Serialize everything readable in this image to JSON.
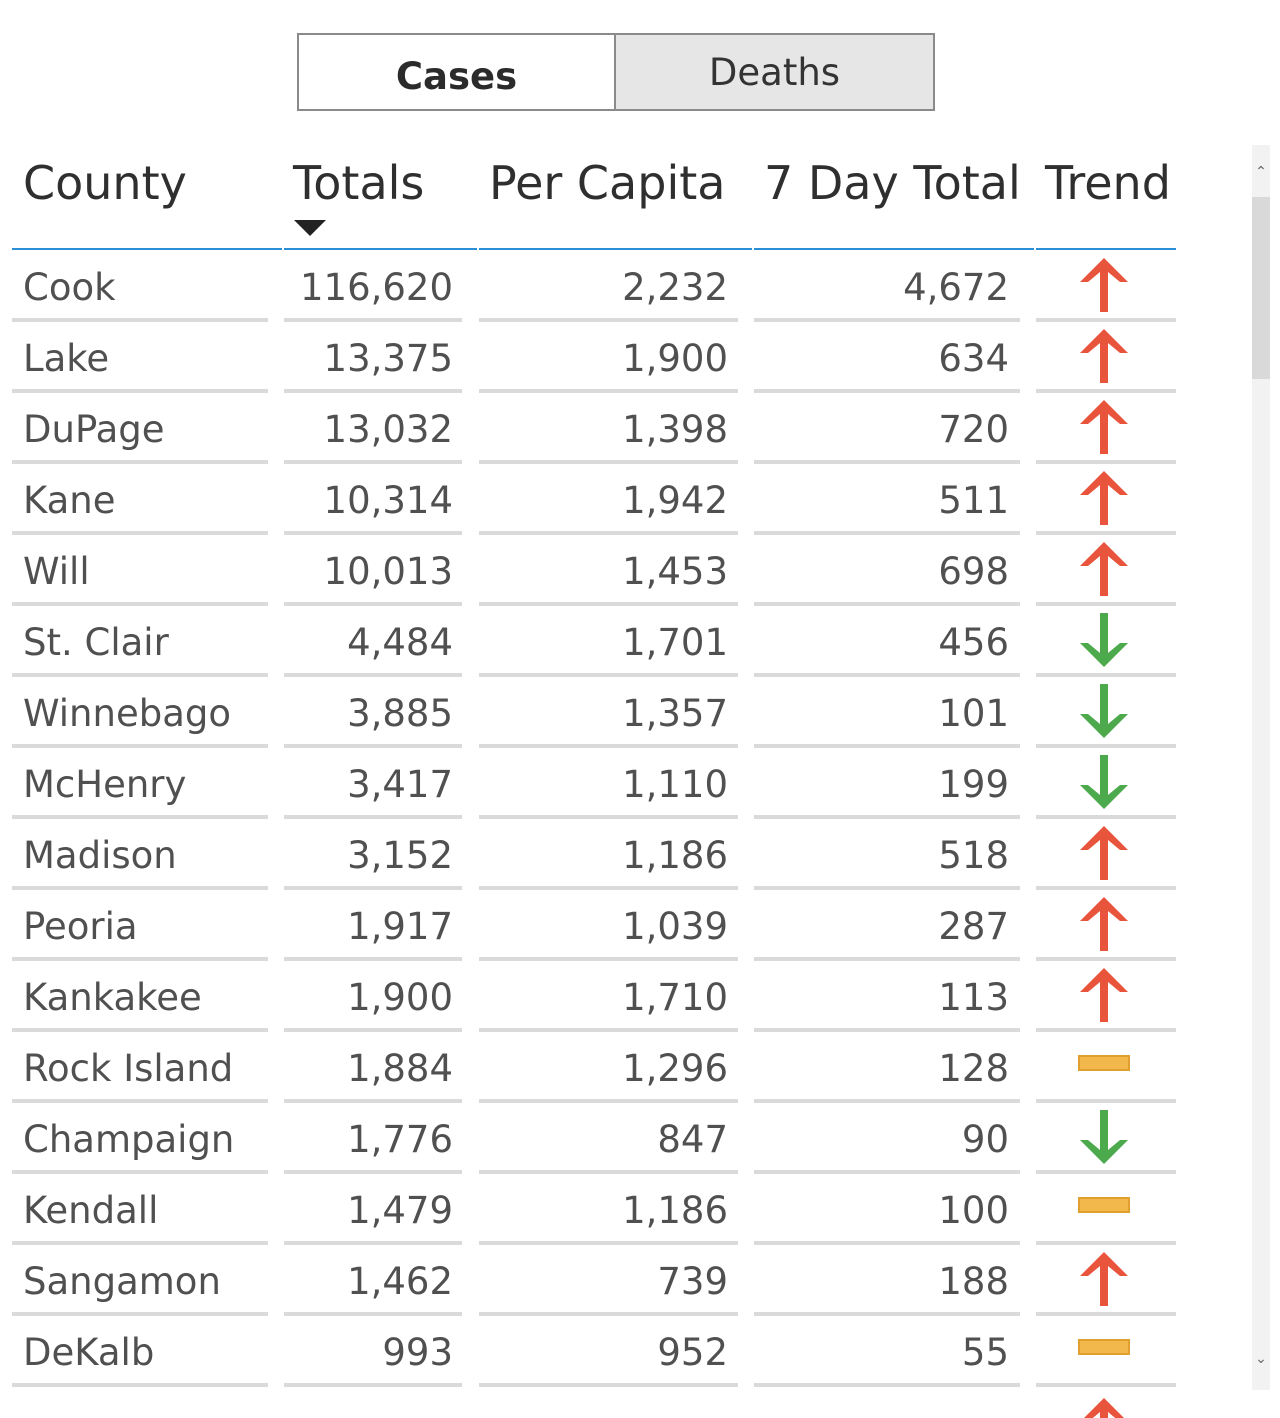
{
  "toggle": {
    "cases_label": "Cases",
    "deaths_label": "Deaths",
    "selected": "Cases"
  },
  "table": {
    "headers": {
      "county": "County",
      "totals": "Totals",
      "per_capita": "Per Capita",
      "seven_day": "7 Day Total",
      "trend": "Trend"
    },
    "sort": {
      "column": "Totals",
      "direction": "descending"
    },
    "rows": [
      {
        "county": "Cook",
        "totals": "116,620",
        "per_capita": "2,232",
        "seven_day": "4,672",
        "trend": "up"
      },
      {
        "county": "Lake",
        "totals": "13,375",
        "per_capita": "1,900",
        "seven_day": "634",
        "trend": "up"
      },
      {
        "county": "DuPage",
        "totals": "13,032",
        "per_capita": "1,398",
        "seven_day": "720",
        "trend": "up"
      },
      {
        "county": "Kane",
        "totals": "10,314",
        "per_capita": "1,942",
        "seven_day": "511",
        "trend": "up"
      },
      {
        "county": "Will",
        "totals": "10,013",
        "per_capita": "1,453",
        "seven_day": "698",
        "trend": "up"
      },
      {
        "county": "St. Clair",
        "totals": "4,484",
        "per_capita": "1,701",
        "seven_day": "456",
        "trend": "down"
      },
      {
        "county": "Winnebago",
        "totals": "3,885",
        "per_capita": "1,357",
        "seven_day": "101",
        "trend": "down"
      },
      {
        "county": "McHenry",
        "totals": "3,417",
        "per_capita": "1,110",
        "seven_day": "199",
        "trend": "down"
      },
      {
        "county": "Madison",
        "totals": "3,152",
        "per_capita": "1,186",
        "seven_day": "518",
        "trend": "up"
      },
      {
        "county": "Peoria",
        "totals": "1,917",
        "per_capita": "1,039",
        "seven_day": "287",
        "trend": "up"
      },
      {
        "county": "Kankakee",
        "totals": "1,900",
        "per_capita": "1,710",
        "seven_day": "113",
        "trend": "up"
      },
      {
        "county": "Rock Island",
        "totals": "1,884",
        "per_capita": "1,296",
        "seven_day": "128",
        "trend": "flat"
      },
      {
        "county": "Champaign",
        "totals": "1,776",
        "per_capita": "847",
        "seven_day": "90",
        "trend": "down"
      },
      {
        "county": "Kendall",
        "totals": "1,479",
        "per_capita": "1,186",
        "seven_day": "100",
        "trend": "flat"
      },
      {
        "county": "Sangamon",
        "totals": "1,462",
        "per_capita": "739",
        "seven_day": "188",
        "trend": "up"
      },
      {
        "county": "DeKalb",
        "totals": "993",
        "per_capita": "952",
        "seven_day": "55",
        "trend": "flat"
      }
    ],
    "partial_next_row_trend": "up"
  },
  "colors": {
    "up": "#e8543c",
    "down": "#4caa4c",
    "flat": "#f2b84b",
    "header_rule": "#2a8fd6"
  },
  "icons": {
    "up": "arrow-up-icon",
    "down": "arrow-down-icon",
    "flat": "dash-icon"
  }
}
